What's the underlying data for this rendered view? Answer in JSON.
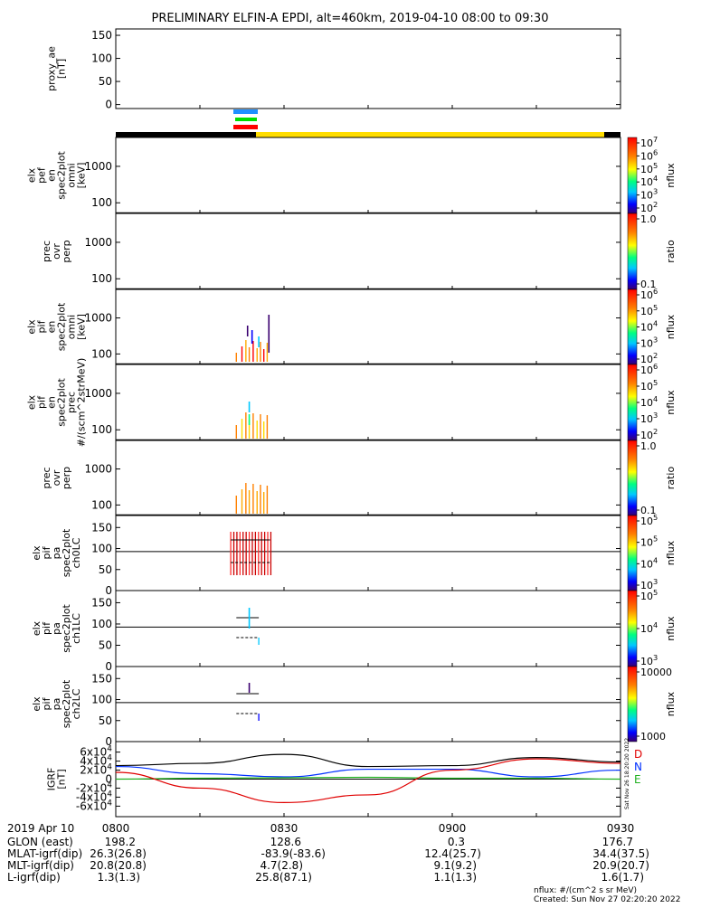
{
  "title": "PRELIMINARY ELFIN-A EPDI, alt=460km, 2019-04-10 08:00 to 09:30",
  "chart_data": {
    "type": "multi-panel-timeseries",
    "time_range": [
      "08:00",
      "09:30"
    ],
    "time_ticks": [
      "0800",
      "0830",
      "0900",
      "0930"
    ],
    "panels": [
      {
        "name": "proxy-ae",
        "ylabel": [
          "proxy_ae",
          "[nT]"
        ],
        "yticks": [
          "0",
          "50",
          "100",
          "150"
        ]
      },
      {
        "name": "elx-pef-en-spec2plot-omni",
        "ylabel": [
          "elx",
          "pef",
          "en",
          "spec2plot",
          "omni",
          "[keV]"
        ],
        "yticks": [
          "100",
          "1000"
        ],
        "colorbar": {
          "label": "nflux",
          "ticks": [
            "10^2",
            "10^3",
            "10^4",
            "10^5",
            "10^6",
            "10^7"
          ]
        }
      },
      {
        "name": "prec-ovr-perp-1",
        "ylabel": [
          "prec",
          "ovr",
          "perp"
        ],
        "yticks": [
          "100",
          "1000"
        ],
        "colorbar": {
          "label": "ratio",
          "ticks": [
            "0.1",
            "1.0"
          ]
        }
      },
      {
        "name": "elx-pif-en-spec2plot-omni",
        "ylabel": [
          "elx",
          "pif",
          "en",
          "spec2plot",
          "omni",
          "[keV]"
        ],
        "yticks": [
          "100",
          "1000"
        ],
        "colorbar": {
          "label": "nflux",
          "ticks": [
            "10^2",
            "10^3",
            "10^4",
            "10^5",
            "10^6"
          ]
        }
      },
      {
        "name": "elx-pif-en-spec2plot-prec",
        "ylabel": [
          "elx",
          "pif",
          "en",
          "spec2plot",
          "prec",
          "#/(scm^2strMeV)"
        ],
        "yticks": [
          "100",
          "1000"
        ],
        "colorbar": {
          "label": "nflux",
          "ticks": [
            "10^2",
            "10^3",
            "10^4",
            "10^5",
            "10^6"
          ]
        }
      },
      {
        "name": "prec-ovr-perp-2",
        "ylabel": [
          "prec",
          "ovr",
          "perp"
        ],
        "yticks": [
          "100",
          "1000"
        ],
        "colorbar": {
          "label": "ratio",
          "ticks": [
            "0.1",
            "1.0"
          ]
        }
      },
      {
        "name": "elx-pif-pa-spec2plot-ch0LC",
        "ylabel": [
          "elx",
          "pif",
          "pa",
          "spec2plot",
          "ch0LC"
        ],
        "yticks": [
          "0",
          "50",
          "100",
          "150"
        ],
        "colorbar": {
          "label": "nflux",
          "ticks": [
            "10^3",
            "10^4",
            "10^5",
            "10^5"
          ]
        }
      },
      {
        "name": "elx-pif-pa-spec2plot-ch1LC",
        "ylabel": [
          "elx",
          "pif",
          "pa",
          "spec2plot",
          "ch1LC"
        ],
        "yticks": [
          "0",
          "50",
          "100",
          "150"
        ],
        "colorbar": {
          "label": "nflux",
          "ticks": [
            "10^3",
            "10^4",
            "10^5"
          ]
        }
      },
      {
        "name": "elx-pif-pa-spec2plot-ch2LC",
        "ylabel": [
          "elx",
          "pif",
          "pa",
          "spec2plot",
          "ch2LC"
        ],
        "yticks": [
          "0",
          "50",
          "100",
          "150"
        ],
        "colorbar": {
          "label": "nflux",
          "ticks": [
            "1000",
            "10000"
          ]
        }
      },
      {
        "name": "igrf",
        "ylabel": [
          "IGRF",
          "[nT]"
        ],
        "yticks": [
          "-6x10^4",
          "-4x10^4",
          "-2x10^4",
          "0",
          "2x10^4",
          "4x10^4",
          "6x10^4"
        ],
        "legend": [
          "D",
          "N",
          "E"
        ]
      }
    ],
    "igrf_series": {
      "x_min": [
        0,
        15,
        30,
        45,
        60,
        75,
        90
      ],
      "D": [
        15000,
        -20000,
        -52000,
        -35000,
        20000,
        45000,
        35000
      ],
      "N": [
        28000,
        12000,
        5000,
        22000,
        22000,
        5000,
        20000
      ],
      "E": [
        0,
        2000,
        3000,
        4000,
        2000,
        2000,
        0
      ],
      "total": [
        30000,
        35000,
        55000,
        28000,
        30000,
        48000,
        38000
      ]
    }
  },
  "footer": {
    "rows": [
      {
        "label": "2019 Apr 10",
        "v": [
          "0800",
          "0830",
          "0900",
          "0930"
        ]
      },
      {
        "label": "GLON (east)",
        "v": [
          "198.2",
          "128.6",
          "0.3",
          "176.7"
        ]
      },
      {
        "label": "MLAT-igrf(dip)",
        "v": [
          "26.3(26.8)",
          "-83.9(-83.6)",
          "12.4(25.7)",
          "34.4(37.5)"
        ]
      },
      {
        "label": "MLT-igrf(dip)",
        "v": [
          "20.8(20.8)",
          "4.7(2.8)",
          "9.1(9.2)",
          "20.9(20.7)"
        ]
      },
      {
        "label": "L-igrf(dip)",
        "v": [
          "1.3(1.3)",
          "25.8(87.1)",
          "1.1(1.3)",
          "1.6(1.7)"
        ]
      }
    ],
    "units_note": "nflux: #/(cm^2 s sr MeV)",
    "created": "Created: Sun Nov 27 02:20:20 2022",
    "side_stamp": "Sat Nov 26 18:20:20 2022"
  },
  "colors": {
    "D": "#e00000",
    "N": "#0030ff",
    "E": "#20b020",
    "total": "#000000"
  }
}
